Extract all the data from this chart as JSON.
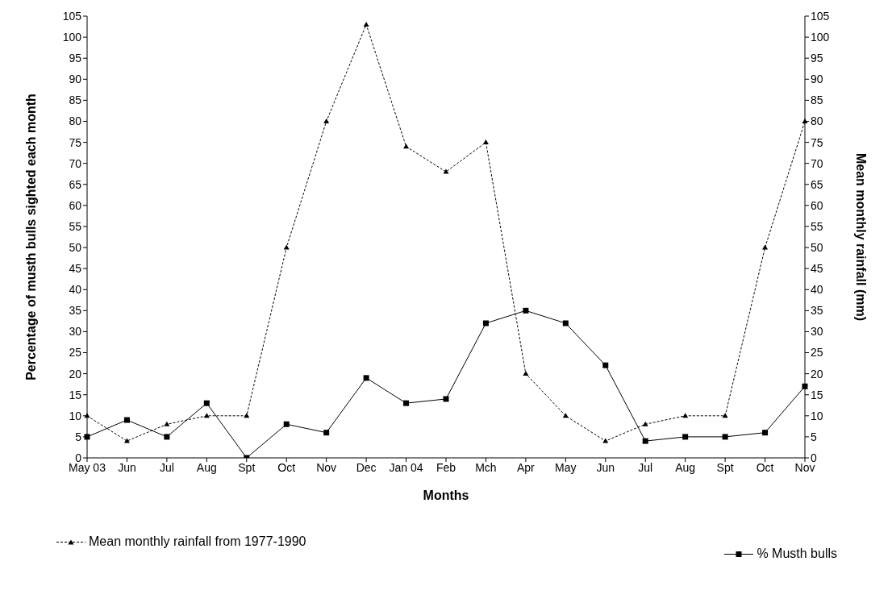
{
  "chart_data": {
    "type": "line",
    "xlabel": "Months",
    "ylabel": "Percentage of musth bulls sighted each month",
    "y2label": "Mean monthly rainfall (mm)",
    "categories": [
      "May 03",
      "Jun",
      "Jul",
      "Aug",
      "Spt",
      "Oct",
      "Nov",
      "Dec",
      "Jan 04",
      "Feb",
      "Mch",
      "Apr",
      "May",
      "Jun",
      "Jul",
      "Aug",
      "Spt",
      "Oct",
      "Nov"
    ],
    "series": [
      {
        "name": "Mean monthly rainfall from 1977-1990",
        "color": "#000000",
        "axis": "y2",
        "marker": "triangle",
        "line_style": "dashed",
        "values": [
          10,
          4,
          8,
          10,
          10,
          50,
          80,
          103,
          74,
          68,
          75,
          20,
          10,
          4,
          8,
          10,
          10,
          50,
          80
        ]
      },
      {
        "name": "% Musth bulls",
        "color": "#000000",
        "marker": "square",
        "line_style": "solid",
        "values": [
          5,
          9,
          5,
          13,
          0,
          8,
          6,
          19,
          13,
          14,
          32,
          35,
          32,
          22,
          4,
          5,
          5,
          6,
          17
        ]
      }
    ],
    "ylim": [
      0,
      105
    ],
    "yticks": [
      0,
      5,
      10,
      15,
      20,
      25,
      30,
      35,
      40,
      45,
      50,
      55,
      60,
      65,
      70,
      75,
      80,
      85,
      90,
      95,
      100,
      105
    ],
    "y2lim": [
      0,
      105
    ],
    "y2ticks": [
      0,
      5,
      10,
      15,
      20,
      25,
      30,
      35,
      40,
      45,
      50,
      55,
      60,
      65,
      70,
      75,
      80,
      85,
      90,
      95,
      100,
      105
    ],
    "grid": false,
    "legend": "bottom"
  }
}
